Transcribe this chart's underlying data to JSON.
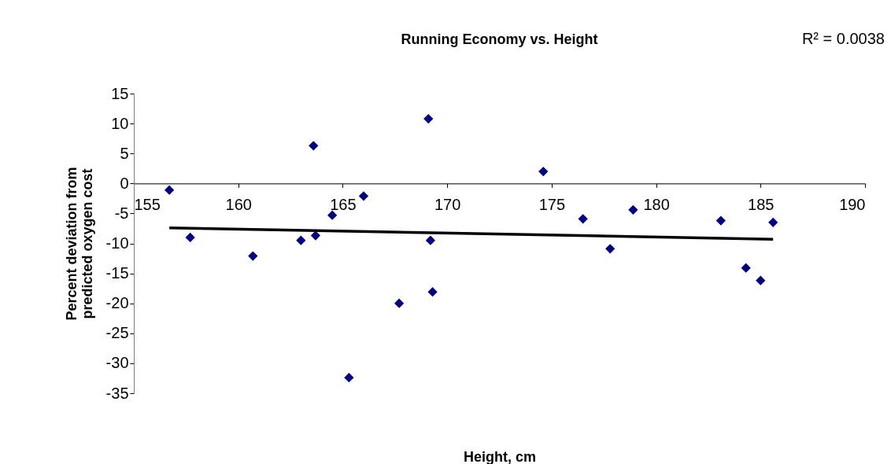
{
  "chart_data": {
    "type": "scatter",
    "title": "Running Economy vs. Height",
    "xlabel": "Height, cm",
    "ylabel": "Percent deviation from predicted oxygen cost",
    "annotations": [
      "R² = 0.0038"
    ],
    "xlim": [
      155,
      190
    ],
    "xticks": [
      155,
      160,
      165,
      170,
      175,
      180,
      185,
      190
    ],
    "ylim": [
      -35,
      15
    ],
    "yticks": [
      -35,
      -30,
      -25,
      -20,
      -15,
      -10,
      -5,
      0,
      5,
      10,
      15
    ],
    "grid": false,
    "series": [
      {
        "marker": "diamond",
        "color": "#000080",
        "x": [
          156.7,
          157.7,
          160.7,
          163.0,
          163.6,
          163.7,
          164.5,
          165.3,
          166.0,
          167.7,
          169.1,
          169.2,
          169.3,
          174.6,
          176.5,
          177.8,
          178.9,
          183.1,
          184.3,
          185.0,
          185.6
        ],
        "values": [
          -1.1,
          -9.0,
          -12.1,
          -9.5,
          6.3,
          -8.7,
          -5.3,
          -32.4,
          -2.1,
          -20.0,
          10.8,
          -9.5,
          -18.1,
          2.0,
          -5.9,
          -10.9,
          -4.4,
          -6.2,
          -14.1,
          -16.2,
          -6.5
        ]
      },
      {
        "type": "line",
        "marker": "none",
        "color": "#000000",
        "line_style": "solid",
        "x": [
          156.7,
          185.6
        ],
        "values": [
          -7.4,
          -9.3
        ]
      }
    ]
  }
}
